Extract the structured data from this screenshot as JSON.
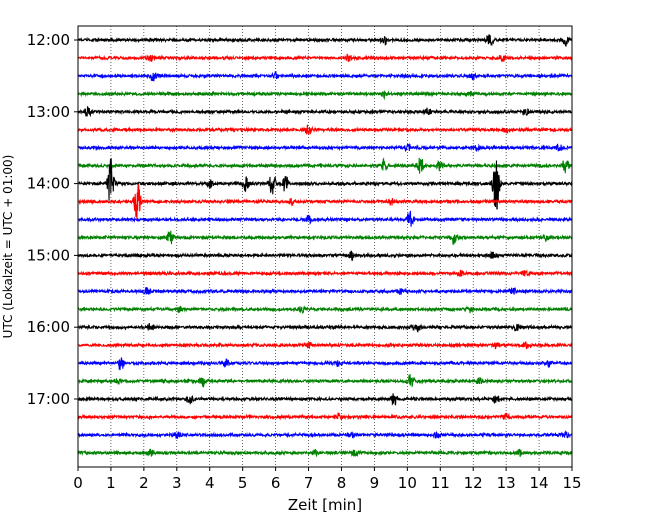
{
  "chart_data": {
    "type": "line",
    "title": "",
    "xlabel": "Zeit  [min]",
    "ylabel": "UTC (Lokalzeit = UTC + 01:00)",
    "xlim": [
      0,
      15
    ],
    "x_ticks": [
      0,
      1,
      2,
      3,
      4,
      5,
      6,
      7,
      8,
      9,
      10,
      11,
      12,
      13,
      14,
      15
    ],
    "x_tick_labels": [
      "0",
      "1",
      "2",
      "3",
      "4",
      "5",
      "6",
      "7",
      "8",
      "9",
      "10",
      "11",
      "12",
      "13",
      "14",
      "15"
    ],
    "y_tick_labels": [
      "12:00",
      "13:00",
      "14:00",
      "15:00",
      "16:00",
      "17:00"
    ],
    "grid": "vertical dotted",
    "trace_interval_min": 15,
    "colors": [
      "#000000",
      "#ff0000",
      "#0000ff",
      "#008000"
    ],
    "series": [
      {
        "time": "12:00",
        "color": "#000000",
        "events": [
          {
            "x": 9.3,
            "amp": 4
          },
          {
            "x": 12.5,
            "amp": 6
          },
          {
            "x": 14.8,
            "amp": 5
          }
        ]
      },
      {
        "time": "12:15",
        "color": "#ff0000",
        "events": [
          {
            "x": 2.2,
            "amp": 3
          },
          {
            "x": 8.2,
            "amp": 3
          },
          {
            "x": 12.9,
            "amp": 3
          }
        ]
      },
      {
        "time": "12:30",
        "color": "#0000ff",
        "events": [
          {
            "x": 2.3,
            "amp": 6
          },
          {
            "x": 6.0,
            "amp": 3
          },
          {
            "x": 12.0,
            "amp": 3
          }
        ]
      },
      {
        "time": "12:45",
        "color": "#008000",
        "events": [
          {
            "x": 9.3,
            "amp": 3
          },
          {
            "x": 11.9,
            "amp": 2
          }
        ]
      },
      {
        "time": "13:00",
        "color": "#000000",
        "events": [
          {
            "x": 0.3,
            "amp": 5
          },
          {
            "x": 10.6,
            "amp": 4
          },
          {
            "x": 13.6,
            "amp": 3
          }
        ]
      },
      {
        "time": "13:15",
        "color": "#ff0000",
        "events": [
          {
            "x": 7.0,
            "amp": 5
          },
          {
            "x": 13.0,
            "amp": 3
          }
        ]
      },
      {
        "time": "13:30",
        "color": "#0000ff",
        "events": [
          {
            "x": 10.0,
            "amp": 4
          },
          {
            "x": 12.1,
            "amp": 3
          },
          {
            "x": 14.6,
            "amp": 3
          }
        ]
      },
      {
        "time": "13:45",
        "color": "#008000",
        "events": [
          {
            "x": 9.3,
            "amp": 6
          },
          {
            "x": 10.4,
            "amp": 8
          },
          {
            "x": 11.0,
            "amp": 5
          },
          {
            "x": 14.8,
            "amp": 8
          }
        ]
      },
      {
        "time": "14:00",
        "color": "#000000",
        "events": [
          {
            "x": 1.0,
            "amp": 26
          },
          {
            "x": 4.0,
            "amp": 4
          },
          {
            "x": 5.1,
            "amp": 8
          },
          {
            "x": 5.9,
            "amp": 12
          },
          {
            "x": 6.3,
            "amp": 10
          },
          {
            "x": 12.7,
            "amp": 30
          }
        ]
      },
      {
        "time": "14:15",
        "color": "#ff0000",
        "events": [
          {
            "x": 1.8,
            "amp": 20
          },
          {
            "x": 6.5,
            "amp": 3
          },
          {
            "x": 9.5,
            "amp": 3
          }
        ]
      },
      {
        "time": "14:30",
        "color": "#0000ff",
        "events": [
          {
            "x": 7.0,
            "amp": 4
          },
          {
            "x": 10.1,
            "amp": 10
          }
        ]
      },
      {
        "time": "14:45",
        "color": "#008000",
        "events": [
          {
            "x": 2.8,
            "amp": 7
          },
          {
            "x": 11.4,
            "amp": 7
          },
          {
            "x": 14.2,
            "amp": 3
          }
        ]
      },
      {
        "time": "15:00",
        "color": "#000000",
        "events": [
          {
            "x": 8.3,
            "amp": 4
          },
          {
            "x": 12.6,
            "amp": 3
          }
        ]
      },
      {
        "time": "15:15",
        "color": "#ff0000",
        "events": [
          {
            "x": 11.6,
            "amp": 3
          },
          {
            "x": 13.6,
            "amp": 3
          }
        ]
      },
      {
        "time": "15:30",
        "color": "#0000ff",
        "events": [
          {
            "x": 2.1,
            "amp": 4
          },
          {
            "x": 9.8,
            "amp": 3
          },
          {
            "x": 13.2,
            "amp": 3
          }
        ]
      },
      {
        "time": "15:45",
        "color": "#008000",
        "events": [
          {
            "x": 3.1,
            "amp": 3
          },
          {
            "x": 6.8,
            "amp": 3
          },
          {
            "x": 11.9,
            "amp": 3
          }
        ]
      },
      {
        "time": "16:00",
        "color": "#000000",
        "events": [
          {
            "x": 2.2,
            "amp": 4
          },
          {
            "x": 10.3,
            "amp": 4
          },
          {
            "x": 13.3,
            "amp": 3
          }
        ]
      },
      {
        "time": "16:15",
        "color": "#ff0000",
        "events": [
          {
            "x": 7.0,
            "amp": 3
          },
          {
            "x": 12.7,
            "amp": 3
          },
          {
            "x": 13.6,
            "amp": 3
          }
        ]
      },
      {
        "time": "16:30",
        "color": "#0000ff",
        "events": [
          {
            "x": 1.3,
            "amp": 8
          },
          {
            "x": 4.5,
            "amp": 4
          },
          {
            "x": 7.9,
            "amp": 3
          },
          {
            "x": 14.3,
            "amp": 3
          }
        ]
      },
      {
        "time": "16:45",
        "color": "#008000",
        "events": [
          {
            "x": 1.2,
            "amp": 3
          },
          {
            "x": 3.8,
            "amp": 5
          },
          {
            "x": 10.1,
            "amp": 6
          },
          {
            "x": 12.2,
            "amp": 3
          }
        ]
      },
      {
        "time": "17:00",
        "color": "#000000",
        "events": [
          {
            "x": 3.4,
            "amp": 4
          },
          {
            "x": 9.6,
            "amp": 6
          },
          {
            "x": 12.7,
            "amp": 4
          }
        ]
      },
      {
        "time": "17:15",
        "color": "#ff0000",
        "events": [
          {
            "x": 7.9,
            "amp": 4
          },
          {
            "x": 13.0,
            "amp": 3
          }
        ]
      },
      {
        "time": "17:30",
        "color": "#0000ff",
        "events": [
          {
            "x": 3.0,
            "amp": 3
          },
          {
            "x": 8.3,
            "amp": 3
          },
          {
            "x": 10.9,
            "amp": 3
          },
          {
            "x": 14.8,
            "amp": 3
          }
        ]
      },
      {
        "time": "17:45",
        "color": "#008000",
        "events": [
          {
            "x": 2.2,
            "amp": 3
          },
          {
            "x": 7.2,
            "amp": 4
          },
          {
            "x": 8.4,
            "amp": 3
          },
          {
            "x": 13.4,
            "amp": 3
          }
        ]
      }
    ]
  }
}
